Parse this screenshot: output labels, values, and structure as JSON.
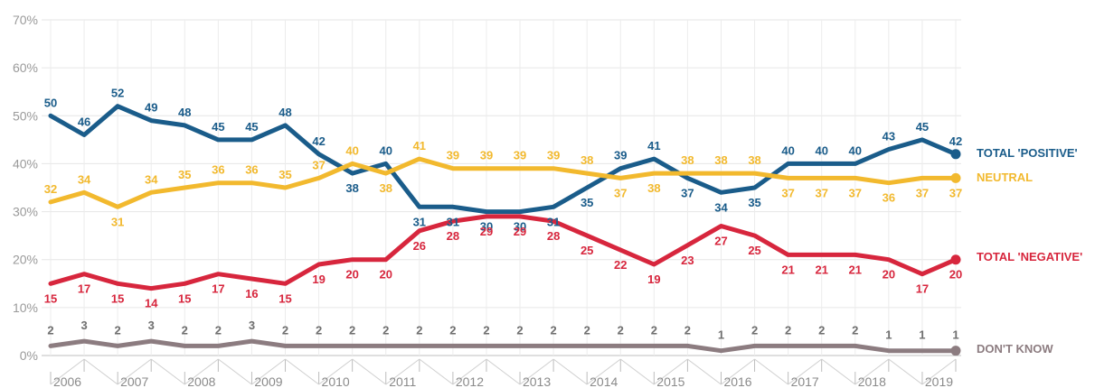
{
  "chart_data": {
    "type": "line",
    "y_ticks": [
      "0%",
      "10%",
      "20%",
      "30%",
      "40%",
      "50%",
      "60%",
      "70%"
    ],
    "ylim": [
      0,
      70
    ],
    "grid": true,
    "year_labels": [
      "2006",
      "2007",
      "2008",
      "2009",
      "2010",
      "2011",
      "2012",
      "2013",
      "2014",
      "2015",
      "2016",
      "2017",
      "2018",
      "2019"
    ],
    "x": [
      "2006 a",
      "2006 b",
      "2007 a",
      "2007 b",
      "2008 a",
      "2008 b",
      "2009 a",
      "2009 b",
      "2010 a",
      "2010 b",
      "2011 a",
      "2011 b",
      "2012 a",
      "2012 b",
      "2013 a",
      "2013 b",
      "2014 a",
      "2014 b",
      "2015 a",
      "2015 b",
      "2016 a",
      "2016 b",
      "2017 a",
      "2017 b",
      "2018 a",
      "2018 b",
      "2019 a",
      "2019 b"
    ],
    "legend_placement": "right, at line ends",
    "series": [
      {
        "name": "TOTAL 'POSITIVE'",
        "color": "#1a5c8a",
        "values": [
          50,
          46,
          52,
          49,
          48,
          45,
          45,
          48,
          42,
          38,
          40,
          31,
          31,
          30,
          30,
          31,
          35,
          39,
          41,
          37,
          34,
          35,
          40,
          40,
          40,
          43,
          45,
          42
        ]
      },
      {
        "name": "NEUTRAL",
        "color": "#f2b92e",
        "values": [
          32,
          34,
          31,
          34,
          35,
          36,
          36,
          35,
          37,
          40,
          38,
          41,
          39,
          39,
          39,
          39,
          38,
          37,
          38,
          38,
          38,
          38,
          37,
          37,
          37,
          36,
          37,
          37
        ]
      },
      {
        "name": "TOTAL 'NEGATIVE'",
        "color": "#d7263d",
        "values": [
          15,
          17,
          15,
          14,
          15,
          17,
          16,
          15,
          19,
          20,
          20,
          26,
          28,
          29,
          29,
          28,
          25,
          22,
          19,
          23,
          27,
          25,
          21,
          21,
          21,
          20,
          17,
          20
        ]
      },
      {
        "name": "DON'T KNOW",
        "color": "#8c7c80",
        "values": [
          2,
          3,
          2,
          3,
          2,
          2,
          3,
          2,
          2,
          2,
          2,
          2,
          2,
          2,
          2,
          2,
          2,
          2,
          2,
          2,
          1,
          2,
          2,
          2,
          2,
          1,
          1,
          1
        ]
      }
    ]
  }
}
